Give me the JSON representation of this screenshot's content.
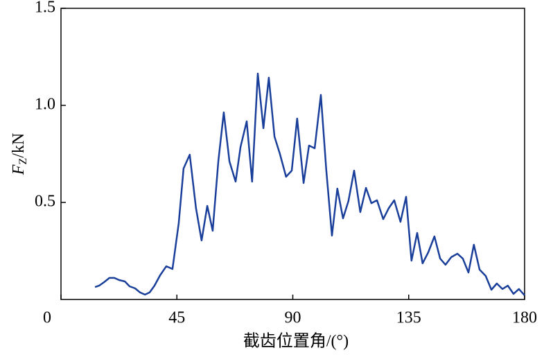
{
  "chart_data": {
    "type": "line",
    "x_label": "截齿位置角/(°)",
    "y_label": [
      "F",
      "Z",
      "/kN"
    ],
    "xlim": [
      0,
      180
    ],
    "xticks": [
      0,
      45,
      90,
      135,
      180
    ],
    "ylim": [
      0,
      1.5
    ],
    "yticks": [
      {
        "value": 0.5,
        "label": "0.5"
      },
      {
        "value": 1.0,
        "label": "1.0"
      },
      {
        "value": 1.5,
        "label": "1.5"
      }
    ],
    "series": [
      {
        "color": "#1a3f9a",
        "x": [
          13.2,
          14.8,
          16.7,
          18.8,
          20.7,
          22.6,
          24.8,
          26.6,
          28.8,
          30.7,
          32.6,
          34.4,
          36.3,
          38.5,
          40.9,
          43.3,
          45.7,
          47.6,
          50.0,
          52.4,
          54.6,
          56.8,
          58.9,
          61.1,
          63.2,
          65.4,
          67.8,
          69.7,
          72.1,
          74.2,
          76.4,
          78.6,
          80.7,
          82.9,
          85.0,
          87.4,
          89.6,
          91.7,
          94.2,
          96.3,
          98.5,
          100.9,
          103.0,
          105.2,
          107.3,
          109.5,
          111.6,
          113.8,
          116.2,
          118.4,
          120.5,
          122.7,
          125.1,
          127.3,
          129.4,
          131.8,
          134.0,
          136.1,
          138.3,
          140.4,
          142.6,
          145.0,
          147.2,
          149.3,
          151.5,
          153.9,
          156.0,
          158.2,
          160.3,
          162.5,
          164.9,
          167.1,
          169.2,
          171.4,
          173.5,
          175.7,
          177.8,
          180
        ],
        "values": [
          0.064,
          0.071,
          0.089,
          0.111,
          0.111,
          0.1,
          0.093,
          0.068,
          0.057,
          0.036,
          0.025,
          0.036,
          0.071,
          0.125,
          0.171,
          0.157,
          0.393,
          0.675,
          0.746,
          0.471,
          0.304,
          0.482,
          0.354,
          0.714,
          0.964,
          0.711,
          0.607,
          0.786,
          0.918,
          0.607,
          1.164,
          0.882,
          1.143,
          0.839,
          0.75,
          0.632,
          0.664,
          0.932,
          0.6,
          0.793,
          0.779,
          1.054,
          0.668,
          0.329,
          0.571,
          0.418,
          0.507,
          0.664,
          0.45,
          0.575,
          0.496,
          0.511,
          0.414,
          0.471,
          0.511,
          0.4,
          0.529,
          0.2,
          0.343,
          0.186,
          0.243,
          0.325,
          0.211,
          0.179,
          0.218,
          0.236,
          0.211,
          0.139,
          0.282,
          0.154,
          0.121,
          0.05,
          0.082,
          0.054,
          0.071,
          0.029,
          0.054,
          0.021
        ]
      }
    ]
  }
}
